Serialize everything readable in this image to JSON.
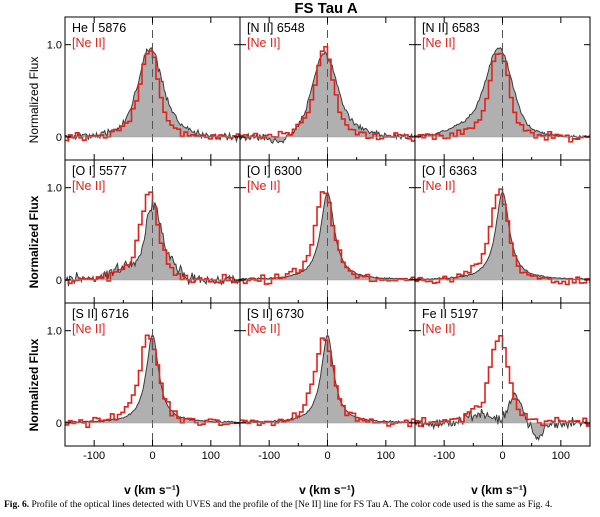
{
  "chart_data": {
    "type": "line",
    "title": "FS Tau A",
    "xlabel": "v (km s⁻¹)",
    "ylabel_top": "Normalized Flux",
    "ylabel": "Normalized Flux",
    "xlim": [
      -150,
      150
    ],
    "ylim": [
      -0.25,
      1.3
    ],
    "xticks": [
      -100,
      0,
      100
    ],
    "xtick_labels": [
      "-100",
      "0",
      "100"
    ],
    "yticks": [
      0,
      1.0
    ],
    "ytick_labels": [
      "0",
      "1.0"
    ],
    "overlay_label": "[Ne II]",
    "colors": {
      "line": "#3a3a3a",
      "fill": "#b0b0b0",
      "ne": "#e0221c"
    },
    "panels": [
      {
        "label": "He I 5876",
        "type": "broad"
      },
      {
        "label": "[N II] 6548",
        "type": "nii"
      },
      {
        "label": "[N II] 6583",
        "type": "nii2"
      },
      {
        "label": "[O I] 5577",
        "type": "oi5577"
      },
      {
        "label": "[O I] 6300",
        "type": "oi"
      },
      {
        "label": "[O I] 6363",
        "type": "oi"
      },
      {
        "label": "[S II] 6716",
        "type": "sii"
      },
      {
        "label": "[S II] 6730",
        "type": "sii"
      },
      {
        "label": "Fe II 5197",
        "type": "feii"
      }
    ],
    "series": [
      {
        "name": "optical line (UVES)"
      },
      {
        "name": "[Ne II]"
      }
    ]
  },
  "caption": {
    "label": "Fig. 6.",
    "text": "Profile of the optical lines detected with UVES and the profile of the [Ne II] line for FS Tau A. The color code used is the same as Fig. 4."
  }
}
